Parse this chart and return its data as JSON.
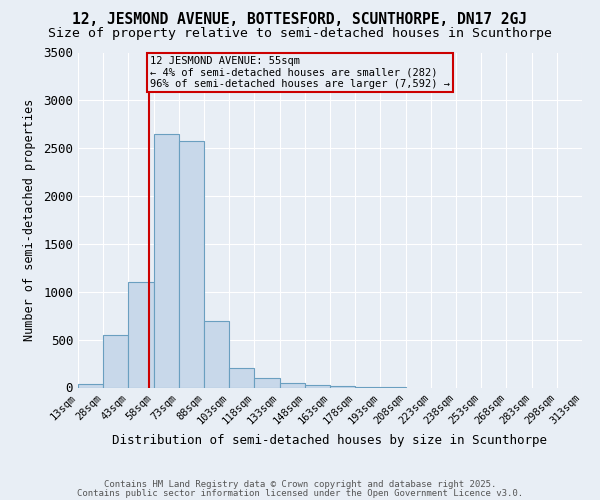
{
  "title": "12, JESMOND AVENUE, BOTTESFORD, SCUNTHORPE, DN17 2GJ",
  "subtitle": "Size of property relative to semi-detached houses in Scunthorpe",
  "xlabel": "Distribution of semi-detached houses by size in Scunthorpe",
  "ylabel": "Number of semi-detached properties",
  "footer1": "Contains HM Land Registry data © Crown copyright and database right 2025.",
  "footer2": "Contains public sector information licensed under the Open Government Licence v3.0.",
  "bin_edges": [
    13,
    28,
    43,
    58,
    73,
    88,
    103,
    118,
    133,
    148,
    163,
    178,
    193,
    208,
    223,
    238,
    253,
    268,
    283,
    298,
    313
  ],
  "bar_heights": [
    40,
    550,
    1100,
    2650,
    2580,
    700,
    200,
    100,
    50,
    30,
    20,
    10,
    5,
    0,
    0,
    0,
    0,
    0,
    0,
    0
  ],
  "bar_color": "#c8d8ea",
  "bar_edge_color": "#6a9fc0",
  "property_size": 55,
  "red_line_color": "#cc0000",
  "annotation_line1": "12 JESMOND AVENUE: 55sqm",
  "annotation_line2": "← 4% of semi-detached houses are smaller (282)",
  "annotation_line3": "96% of semi-detached houses are larger (7,592) →",
  "ylim": [
    0,
    3500
  ],
  "background_color": "#e8eef5",
  "grid_color": "#ffffff",
  "title_fontsize": 10.5,
  "subtitle_fontsize": 9.5,
  "tick_label_fontsize": 7.5,
  "ylabel_fontsize": 8.5,
  "xlabel_fontsize": 9,
  "annotation_fontsize": 7.5,
  "footer_fontsize": 6.5
}
